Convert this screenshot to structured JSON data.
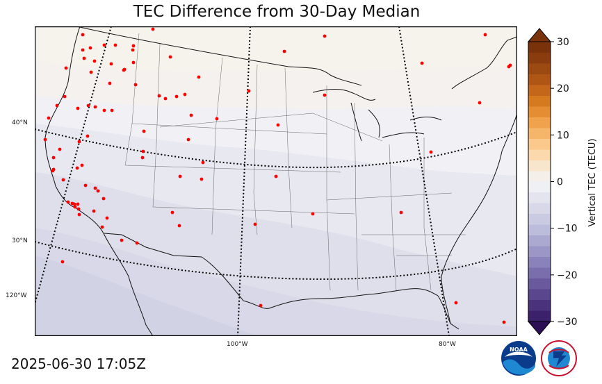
{
  "title": "TEC Difference from 30-Day Median",
  "timestamp": "2025-06-30 17:05Z",
  "colorbar": {
    "label": "Vertical TEC (TECU)",
    "ticks": [
      "30",
      "20",
      "10",
      "0",
      "−10",
      "−20",
      "−30"
    ],
    "min": -30,
    "max": 30,
    "colors_high": [
      "#f4efe8",
      "#f8e6cc",
      "#fbd9ad",
      "#fac98b",
      "#f6b66a",
      "#f0a24c",
      "#e48d32",
      "#d67a1f",
      "#c4671a",
      "#b05615",
      "#9c4912",
      "#8a3c0e",
      "#7a320b"
    ],
    "colors_low": [
      "#eff0f4",
      "#e4e4ef",
      "#d8d8e9",
      "#cacbe2",
      "#bcbcdb",
      "#aca9d1",
      "#9b96c6",
      "#8a82ba",
      "#7a6eac",
      "#6a5a9d",
      "#5a468d",
      "#4a337c",
      "#3b216b"
    ]
  },
  "latitude_labels": [
    "40°N",
    "30°N"
  ],
  "longitude_labels": [
    "120°W",
    "100°W",
    "80°W"
  ],
  "logos": [
    "NOAA",
    "NATIONAL WEATHER SERVICE"
  ]
}
